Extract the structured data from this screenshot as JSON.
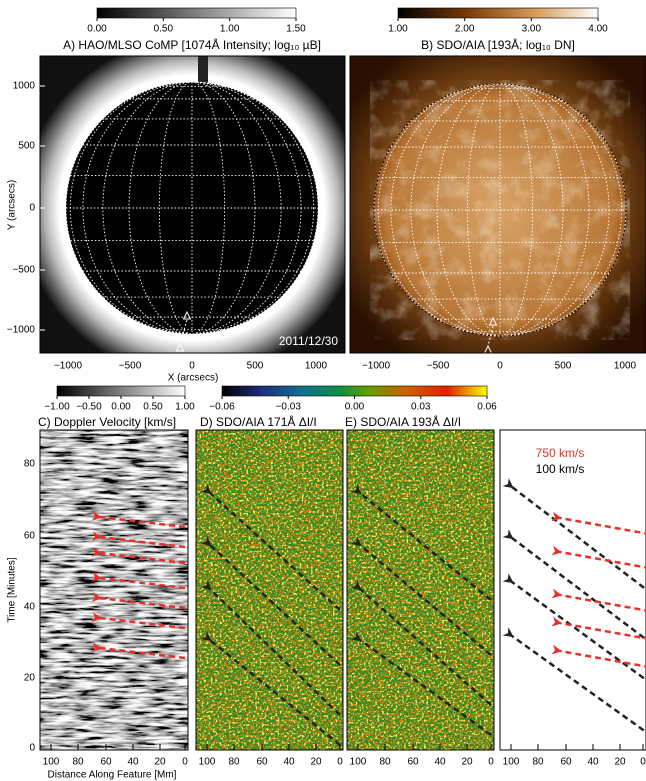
{
  "colorbars": {
    "a": [
      "0.00",
      "0.50",
      "1.00",
      "1.50"
    ],
    "b": [
      "1.00",
      "2.00",
      "3.00",
      "4.00"
    ],
    "c": [
      "−1.00",
      "−0.50",
      "0.00",
      "0.50",
      "1.00"
    ],
    "de": [
      "−0.06",
      "−0.03",
      "0.00",
      "0.03",
      "0.06"
    ]
  },
  "top": {
    "a_title": "A) HAO/MLSO CoMP [1074Å Intensity; log₁₀ µB]",
    "b_title": "B) SDO/AIA [193Å; log₁₀ DN]",
    "ylabel": "Y (arcsecs)",
    "xlabel": "X (arcsecs)",
    "yticks": [
      "1000",
      "500",
      "0",
      "−500",
      "−1000"
    ],
    "xticks": [
      "−1000",
      "−500",
      "0",
      "500",
      "1000"
    ],
    "date": "2011/12/30"
  },
  "bottom": {
    "c_title": "C) Doppler Velocity [km/s]",
    "d_title": "D) SDO/AIA 171Å ΔI/I",
    "e_title": "E) SDO/AIA 193Å ΔI/I",
    "ylabel": "Time [Minutes]",
    "xlabel": "Distance Along Feature [Mm]",
    "yticks": [
      "80",
      "60",
      "40",
      "20",
      "0"
    ],
    "xticks": [
      "100",
      "80",
      "60",
      "40",
      "20",
      "0"
    ],
    "legend_fast": "750 km/s",
    "legend_slow": "100 km/s"
  }
}
